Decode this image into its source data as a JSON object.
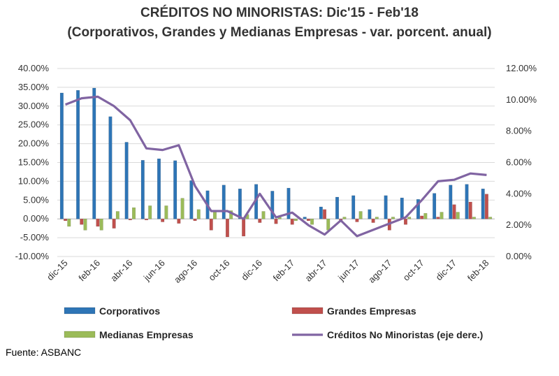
{
  "chart_data": {
    "type": "bar",
    "title": "CRÉDITOS NO MINORISTAS: Dic'15 - Feb'18",
    "subtitle": "(Corporativos, Grandes y Medianas Empresas - var. porcent. anual)",
    "source": "Fuente: ASBANC",
    "categories": [
      "dic-15",
      "ene-16",
      "feb-16",
      "mar-16",
      "abr-16",
      "may-16",
      "jun-16",
      "jul-16",
      "ago-16",
      "sep-16",
      "oct-16",
      "nov-16",
      "dic-16",
      "ene-17",
      "feb-17",
      "mar-17",
      "abr-17",
      "may-17",
      "jun-17",
      "jul-17",
      "ago-17",
      "sep-17",
      "oct-17",
      "nov-17",
      "dic-17",
      "ene-18",
      "feb-18"
    ],
    "x_tick_labels": [
      "dic-15",
      "feb-16",
      "abr-16",
      "jun-16",
      "ago-16",
      "oct-16",
      "dic-16",
      "feb-17",
      "abr-17",
      "jun-17",
      "ago-17",
      "oct-17",
      "dic-17",
      "feb-18"
    ],
    "y_left": {
      "ticks": [
        "40.00%",
        "35.00%",
        "30.00%",
        "25.00%",
        "20.00%",
        "15.00%",
        "10.00%",
        "5.00%",
        "0.00%",
        "-5.00%",
        "-10.00%"
      ],
      "min": -10,
      "max": 40
    },
    "y_right": {
      "ticks": [
        "12.00%",
        "10.00%",
        "8.00%",
        "6.00%",
        "4.00%",
        "2.00%",
        "0.00%"
      ],
      "min": 0,
      "max": 12
    },
    "series": [
      {
        "name": "Corporativos",
        "axis": "left",
        "type": "bar",
        "color": "#2E75B6",
        "values": [
          33.5,
          34.2,
          34.8,
          27.2,
          20.4,
          15.6,
          16.0,
          15.5,
          10.2,
          7.5,
          9.0,
          8.0,
          9.2,
          7.4,
          8.2,
          0.5,
          3.2,
          5.8,
          6.2,
          2.5,
          6.2,
          5.6,
          5.2,
          6.8,
          9.0,
          9.2,
          8.0
        ]
      },
      {
        "name": "Grandes Empresas",
        "axis": "left",
        "type": "bar",
        "color": "#C0504D",
        "values": [
          -0.5,
          -1.5,
          -2.0,
          -2.5,
          -0.3,
          -0.3,
          -0.8,
          -1.2,
          -0.5,
          -3.0,
          -4.8,
          -4.6,
          -1.0,
          -1.3,
          -1.5,
          -0.5,
          2.5,
          -0.8,
          -0.8,
          -1.0,
          -3.0,
          -1.5,
          0.8,
          0.5,
          3.8,
          4.5,
          6.6
        ]
      },
      {
        "name": "Medianas Empresas",
        "axis": "left",
        "type": "bar",
        "color": "#9BBB59",
        "values": [
          -2.0,
          -3.0,
          -3.0,
          2.0,
          3.0,
          3.5,
          3.5,
          5.5,
          2.5,
          2.0,
          2.2,
          1.2,
          2.0,
          0.5,
          -0.5,
          -1.5,
          -3.0,
          0.5,
          2.0,
          0.5,
          0.5,
          0.5,
          1.5,
          1.8,
          1.8,
          0.5,
          0.5
        ]
      },
      {
        "name": "Créditos No Minoristas (eje dere.)",
        "axis": "right",
        "type": "line",
        "color": "#8064A2",
        "values": [
          9.7,
          10.1,
          10.2,
          9.6,
          8.7,
          6.9,
          6.8,
          7.1,
          4.5,
          2.9,
          2.9,
          2.4,
          4.0,
          2.5,
          2.8,
          2.0,
          1.4,
          2.3,
          1.3,
          1.7,
          2.1,
          2.5,
          3.6,
          4.8,
          4.9,
          5.3,
          5.2
        ]
      }
    ],
    "legend": {
      "placement": "bottom",
      "entries": [
        "Corporativos",
        "Grandes Empresas",
        "Medianas Empresas",
        "Créditos No Minoristas (eje dere.)"
      ]
    },
    "grid": true
  }
}
